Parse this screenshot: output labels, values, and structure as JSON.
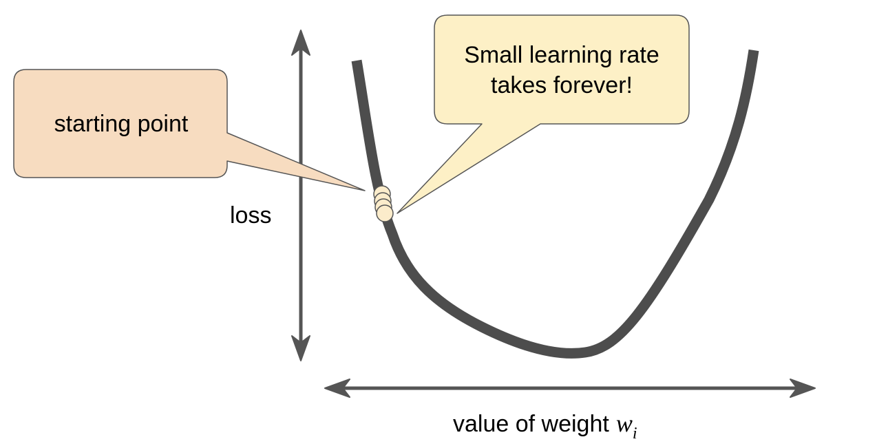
{
  "axes": {
    "y_label": "loss",
    "x_label": "value of weight",
    "x_var": "w",
    "x_sub": "i"
  },
  "callouts": {
    "start": "starting point",
    "small_line1": "Small learning rate",
    "small_line2": "takes forever!"
  },
  "colors": {
    "curve": "#4d4d4d",
    "axis": "#555555",
    "start_fill": "#f7dcc0",
    "small_fill": "#fdf0c6",
    "callout_stroke": "#555555",
    "dot_fill": "#fbeccb"
  }
}
